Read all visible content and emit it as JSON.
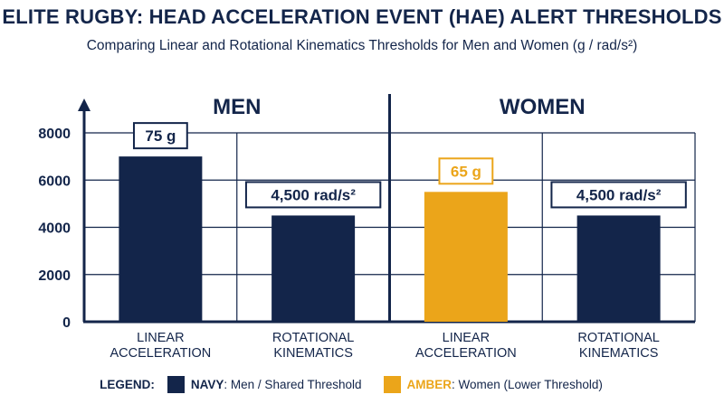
{
  "colors": {
    "navy": "#13254a",
    "amber": "#eba51a",
    "grid": "#13254a"
  },
  "chart_data": {
    "type": "bar",
    "title": "ELITE RUGBY: HEAD ACCELERATION EVENT (HAE) ALERT THRESHOLDS",
    "subtitle": "Comparing Linear and Rotational Kinematics Thresholds for Men and Women (g / rad/s²)",
    "ylim": [
      0,
      8000
    ],
    "yticks": [
      "0",
      "2000",
      "4000",
      "6000",
      "8000"
    ],
    "grid": true,
    "groups": [
      {
        "name": "MEN",
        "bars": [
          {
            "category": "LINEAR\nACCELERATION",
            "value": 7000,
            "label": "75 g",
            "color": "navy"
          },
          {
            "category": "ROTATIONAL\nKINEMATICS",
            "value": 4500,
            "label": "4,500 rad/s²",
            "color": "navy"
          }
        ]
      },
      {
        "name": "WOMEN",
        "bars": [
          {
            "category": "LINEAR\nACCELERATION",
            "value": 5500,
            "label": "65 g",
            "color": "amber"
          },
          {
            "category": "ROTATIONAL\nKINEMATICS",
            "value": 4500,
            "label": "4,500 rad/s²",
            "color": "navy"
          }
        ]
      }
    ],
    "legend": {
      "title": "LEGEND:",
      "position": "bottom",
      "items": [
        {
          "key": "NAVY",
          "text": ": Men / Shared Threshold",
          "color": "navy"
        },
        {
          "key": "AMBER",
          "text": ": Women (Lower Threshold)",
          "color": "amber"
        }
      ]
    }
  }
}
